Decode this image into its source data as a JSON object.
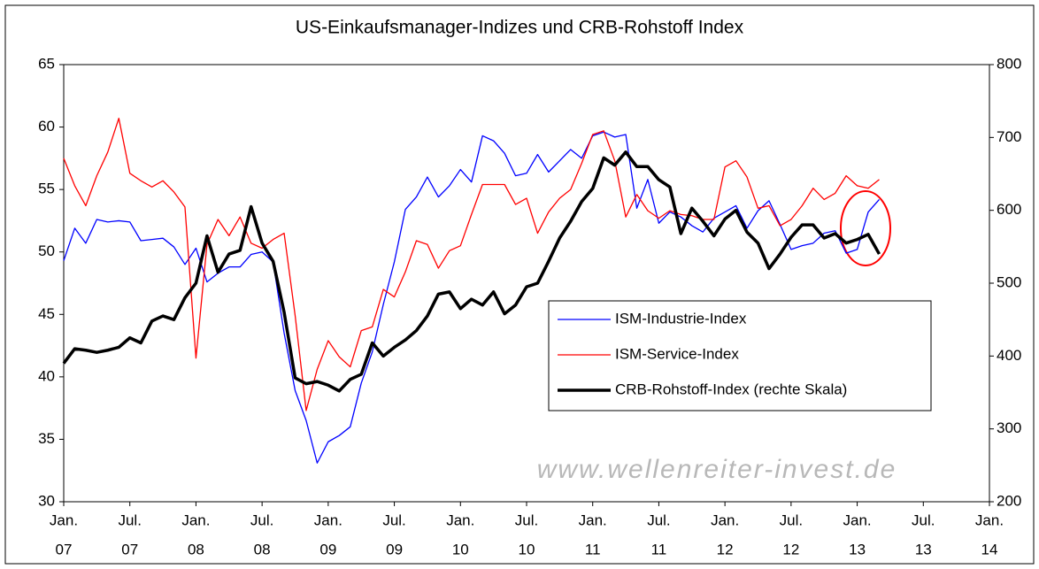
{
  "chart_data": {
    "type": "line",
    "title": "US-Einkaufsmanager-Indizes und CRB-Rohstoff Index",
    "watermark": "www.wellenreiter-invest.de",
    "x": [
      "2007-01",
      "2007-02",
      "2007-03",
      "2007-04",
      "2007-05",
      "2007-06",
      "2007-07",
      "2007-08",
      "2007-09",
      "2007-10",
      "2007-11",
      "2007-12",
      "2008-01",
      "2008-02",
      "2008-03",
      "2008-04",
      "2008-05",
      "2008-06",
      "2008-07",
      "2008-08",
      "2008-09",
      "2008-10",
      "2008-11",
      "2008-12",
      "2009-01",
      "2009-02",
      "2009-03",
      "2009-04",
      "2009-05",
      "2009-06",
      "2009-07",
      "2009-08",
      "2009-09",
      "2009-10",
      "2009-11",
      "2009-12",
      "2010-01",
      "2010-02",
      "2010-03",
      "2010-04",
      "2010-05",
      "2010-06",
      "2010-07",
      "2010-08",
      "2010-09",
      "2010-10",
      "2010-11",
      "2010-12",
      "2011-01",
      "2011-02",
      "2011-03",
      "2011-04",
      "2011-05",
      "2011-06",
      "2011-07",
      "2011-08",
      "2011-09",
      "2011-10",
      "2011-11",
      "2011-12",
      "2012-01",
      "2012-02",
      "2012-03",
      "2012-04",
      "2012-05",
      "2012-06",
      "2012-07",
      "2012-08",
      "2012-09",
      "2012-10",
      "2012-11",
      "2012-12",
      "2013-01",
      "2013-02",
      "2013-03"
    ],
    "series": [
      {
        "name": "ISM-Industrie-Index",
        "color": "#0000ff",
        "width": 1.3,
        "values": [
          49.3,
          51.9,
          50.7,
          52.6,
          52.4,
          52.5,
          52.4,
          50.9,
          51.0,
          51.1,
          50.4,
          49.0,
          50.3,
          47.6,
          48.3,
          48.8,
          48.8,
          49.8,
          50.0,
          49.2,
          43.5,
          38.9,
          36.5,
          33.1,
          34.8,
          35.3,
          36.0,
          39.5,
          42.0,
          45.8,
          49.2,
          53.4,
          54.4,
          56.0,
          54.4,
          55.3,
          56.6,
          55.6,
          59.3,
          58.9,
          57.9,
          56.1,
          56.3,
          57.8,
          56.4,
          57.3,
          58.2,
          57.5,
          59.3,
          59.6,
          59.2,
          59.4,
          53.5,
          55.8,
          52.3,
          53.2,
          52.8,
          52.1,
          51.6,
          52.7,
          53.2,
          53.7,
          51.9,
          53.3,
          54.1,
          52.2,
          50.2,
          50.5,
          50.7,
          51.5,
          51.7,
          49.9,
          50.2,
          53.2,
          54.2
        ]
      },
      {
        "name": "ISM-Service-Index",
        "color": "#ff0000",
        "width": 1.3,
        "values": [
          57.5,
          55.3,
          53.7,
          56.1,
          58.0,
          60.7,
          56.3,
          55.7,
          55.2,
          55.7,
          54.8,
          53.6,
          41.5,
          50.6,
          52.6,
          51.3,
          52.8,
          50.7,
          50.3,
          51.0,
          51.5,
          44.9,
          37.3,
          40.6,
          42.9,
          41.6,
          40.8,
          43.7,
          44.0,
          47.0,
          46.4,
          48.4,
          50.9,
          50.6,
          48.7,
          50.1,
          50.5,
          53.0,
          55.4,
          55.4,
          55.4,
          53.8,
          54.3,
          51.5,
          53.2,
          54.3,
          55.0,
          57.1,
          59.4,
          59.7,
          57.3,
          52.8,
          54.6,
          53.3,
          52.7,
          53.3,
          53.0,
          52.9,
          52.6,
          52.6,
          56.8,
          57.3,
          56.0,
          53.5,
          53.7,
          52.1,
          52.6,
          53.7,
          55.1,
          54.2,
          54.7,
          56.1,
          55.3,
          55.1,
          55.8
        ]
      },
      {
        "name": "CRB-Rohstoff-Index (rechte Skala)",
        "color": "#000000",
        "width": 3.5,
        "axis": "y2",
        "values": [
          390,
          410,
          408,
          405,
          408,
          412,
          425,
          418,
          448,
          455,
          450,
          480,
          500,
          565,
          515,
          540,
          545,
          605,
          555,
          530,
          460,
          370,
          362,
          365,
          360,
          352,
          368,
          375,
          418,
          400,
          412,
          422,
          435,
          455,
          485,
          488,
          465,
          478,
          470,
          488,
          458,
          470,
          495,
          500,
          530,
          562,
          585,
          612,
          630,
          672,
          662,
          680,
          660,
          660,
          642,
          632,
          568,
          603,
          585,
          565,
          588,
          600,
          570,
          555,
          520,
          540,
          563,
          580,
          580,
          562,
          568,
          555,
          560,
          567,
          540
        ]
      }
    ],
    "xlim": [
      "2007-01",
      "2014-01"
    ],
    "xticks": [
      {
        "value": "2007-01",
        "label": [
          "Jan.",
          "07"
        ]
      },
      {
        "value": "2007-07",
        "label": [
          "Jul.",
          "07"
        ]
      },
      {
        "value": "2008-01",
        "label": [
          "Jan.",
          "08"
        ]
      },
      {
        "value": "2008-07",
        "label": [
          "Jul.",
          "08"
        ]
      },
      {
        "value": "2009-01",
        "label": [
          "Jan.",
          "09"
        ]
      },
      {
        "value": "2009-07",
        "label": [
          "Jul.",
          "09"
        ]
      },
      {
        "value": "2010-01",
        "label": [
          "Jan.",
          "10"
        ]
      },
      {
        "value": "2010-07",
        "label": [
          "Jul.",
          "10"
        ]
      },
      {
        "value": "2011-01",
        "label": [
          "Jan.",
          "11"
        ]
      },
      {
        "value": "2011-07",
        "label": [
          "Jul.",
          "11"
        ]
      },
      {
        "value": "2012-01",
        "label": [
          "Jan.",
          "12"
        ]
      },
      {
        "value": "2012-07",
        "label": [
          "Jul.",
          "12"
        ]
      },
      {
        "value": "2013-01",
        "label": [
          "Jan.",
          "13"
        ]
      },
      {
        "value": "2013-07",
        "label": [
          "Jul.",
          "13"
        ]
      },
      {
        "value": "2014-01",
        "label": [
          "Jan.",
          "14"
        ]
      }
    ],
    "ylim": [
      30,
      65
    ],
    "yticks": [
      30,
      35,
      40,
      45,
      50,
      55,
      60,
      65
    ],
    "y2lim": [
      200,
      800
    ],
    "y2ticks": [
      200,
      300,
      400,
      500,
      600,
      700,
      800
    ],
    "grid": false
  }
}
